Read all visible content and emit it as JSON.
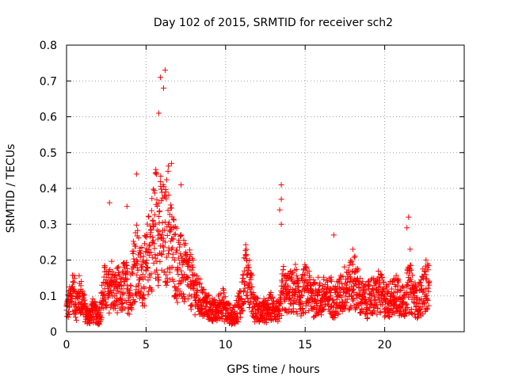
{
  "chart_data": {
    "type": "scatter",
    "title": "Day 102 of 2015, SRMTID for receiver sch2",
    "xlabel": "GPS time / hours",
    "ylabel": "SRMTID / TECUs",
    "xlim": [
      0,
      25
    ],
    "ylim": [
      0,
      0.8
    ],
    "x_ticks": [
      0,
      5,
      10,
      15,
      20
    ],
    "x_tick_labels": [
      "0",
      "5",
      "10",
      "15",
      "20"
    ],
    "y_ticks": [
      0,
      0.1,
      0.2,
      0.3,
      0.4,
      0.5,
      0.6,
      0.7,
      0.8
    ],
    "y_tick_labels": [
      "0",
      "0.1",
      "0.2",
      "0.3",
      "0.4",
      "0.5",
      "0.6",
      "0.7",
      "0.8"
    ],
    "grid": true,
    "marker": "+",
    "marker_color": "#ff0000",
    "series": [
      {
        "name": "sch2",
        "x": [
          0.0,
          0.2,
          0.4,
          0.6,
          0.8,
          1.0,
          1.2,
          1.4,
          1.6,
          1.8,
          2.0,
          2.2,
          2.4,
          2.6,
          2.8,
          3.0,
          3.2,
          3.4,
          3.6,
          3.8,
          4.0,
          4.2,
          4.4,
          4.6,
          4.8,
          5.0,
          5.2,
          5.4,
          5.6,
          5.8,
          6.0,
          6.2,
          6.4,
          6.6,
          6.8,
          7.0,
          7.2,
          7.4,
          7.6,
          7.8,
          8.0,
          8.2,
          8.4,
          8.6,
          8.8,
          9.0,
          9.2,
          9.4,
          9.6,
          9.8,
          10.0,
          10.2,
          10.4,
          10.6,
          10.8,
          11.0,
          11.2,
          11.4,
          11.6,
          11.8,
          12.0,
          12.2,
          12.4,
          12.6,
          12.8,
          13.0,
          13.2,
          13.4,
          13.6,
          13.8,
          14.0,
          14.2,
          14.4,
          14.6,
          14.8,
          15.0,
          15.2,
          15.4,
          15.6,
          15.8,
          16.0,
          16.2,
          16.4,
          16.6,
          16.8,
          17.0,
          17.2,
          17.4,
          17.6,
          17.8,
          18.0,
          18.2,
          18.4,
          18.6,
          18.8,
          19.0,
          19.2,
          19.4,
          19.6,
          19.8,
          20.0,
          20.2,
          20.4,
          20.6,
          20.8,
          21.0,
          21.2,
          21.4,
          21.6,
          21.8,
          22.0,
          22.2,
          22.4,
          22.6,
          22.8
        ],
        "y": [
          0.06,
          0.08,
          0.12,
          0.07,
          0.1,
          0.09,
          0.05,
          0.04,
          0.06,
          0.05,
          0.04,
          0.08,
          0.12,
          0.1,
          0.14,
          0.1,
          0.12,
          0.09,
          0.13,
          0.12,
          0.1,
          0.18,
          0.2,
          0.15,
          0.16,
          0.17,
          0.22,
          0.25,
          0.3,
          0.28,
          0.27,
          0.25,
          0.3,
          0.23,
          0.2,
          0.18,
          0.17,
          0.16,
          0.15,
          0.14,
          0.12,
          0.1,
          0.09,
          0.08,
          0.07,
          0.06,
          0.06,
          0.05,
          0.07,
          0.08,
          0.06,
          0.05,
          0.04,
          0.05,
          0.07,
          0.09,
          0.14,
          0.18,
          0.11,
          0.07,
          0.06,
          0.05,
          0.06,
          0.05,
          0.07,
          0.06,
          0.06,
          0.05,
          0.12,
          0.1,
          0.11,
          0.1,
          0.12,
          0.09,
          0.1,
          0.12,
          0.11,
          0.1,
          0.09,
          0.1,
          0.08,
          0.1,
          0.09,
          0.1,
          0.08,
          0.09,
          0.1,
          0.11,
          0.13,
          0.12,
          0.14,
          0.13,
          0.1,
          0.09,
          0.08,
          0.09,
          0.1,
          0.09,
          0.11,
          0.1,
          0.09,
          0.08,
          0.1,
          0.09,
          0.11,
          0.09,
          0.08,
          0.11,
          0.12,
          0.1,
          0.08,
          0.09,
          0.11,
          0.12,
          0.13
        ]
      }
    ],
    "peaks": [
      {
        "x": 2.7,
        "y": 0.36
      },
      {
        "x": 3.8,
        "y": 0.35
      },
      {
        "x": 4.4,
        "y": 0.44
      },
      {
        "x": 5.9,
        "y": 0.71
      },
      {
        "x": 6.2,
        "y": 0.73
      },
      {
        "x": 6.1,
        "y": 0.68
      },
      {
        "x": 5.8,
        "y": 0.61
      },
      {
        "x": 6.6,
        "y": 0.47
      },
      {
        "x": 7.2,
        "y": 0.41
      },
      {
        "x": 11.3,
        "y": 0.23
      },
      {
        "x": 13.5,
        "y": 0.41
      },
      {
        "x": 13.5,
        "y": 0.37
      },
      {
        "x": 13.4,
        "y": 0.34
      },
      {
        "x": 13.5,
        "y": 0.3
      },
      {
        "x": 16.8,
        "y": 0.27
      },
      {
        "x": 18.0,
        "y": 0.23
      },
      {
        "x": 21.5,
        "y": 0.32
      },
      {
        "x": 21.4,
        "y": 0.29
      },
      {
        "x": 21.6,
        "y": 0.23
      },
      {
        "x": 22.6,
        "y": 0.2
      }
    ]
  }
}
